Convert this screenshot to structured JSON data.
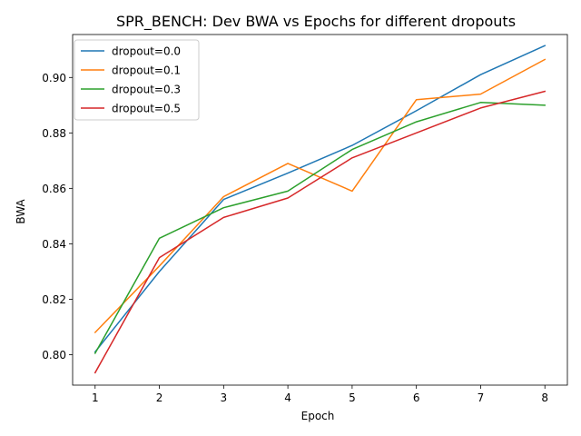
{
  "chart_data": {
    "type": "line",
    "title": "SPR_BENCH: Dev BWA vs Epochs for different dropouts",
    "xlabel": "Epoch",
    "ylabel": "BWA",
    "x": [
      1,
      2,
      3,
      4,
      5,
      6,
      7,
      8
    ],
    "xlim": [
      0.65,
      8.35
    ],
    "ylim": [
      0.789,
      0.9155
    ],
    "xticks": [
      1,
      2,
      3,
      4,
      5,
      6,
      7,
      8
    ],
    "yticks": [
      0.8,
      0.82,
      0.84,
      0.86,
      0.88,
      0.9
    ],
    "ytick_labels": [
      "0.80",
      "0.82",
      "0.84",
      "0.86",
      "0.88",
      "0.90"
    ],
    "grid": false,
    "legend_position": "top-left",
    "series": [
      {
        "name": "dropout=0.0",
        "color": "#1f77b4",
        "values": [
          0.801,
          0.83,
          0.856,
          0.8655,
          0.8755,
          0.888,
          0.901,
          0.9115
        ]
      },
      {
        "name": "dropout=0.1",
        "color": "#ff7f0e",
        "values": [
          0.808,
          0.832,
          0.857,
          0.869,
          0.859,
          0.892,
          0.894,
          0.9065
        ]
      },
      {
        "name": "dropout=0.3",
        "color": "#2ca02c",
        "values": [
          0.8005,
          0.842,
          0.853,
          0.859,
          0.874,
          0.884,
          0.891,
          0.89
        ]
      },
      {
        "name": "dropout=0.5",
        "color": "#d62728",
        "values": [
          0.7935,
          0.835,
          0.8495,
          0.8565,
          0.871,
          0.88,
          0.889,
          0.895
        ]
      }
    ]
  }
}
